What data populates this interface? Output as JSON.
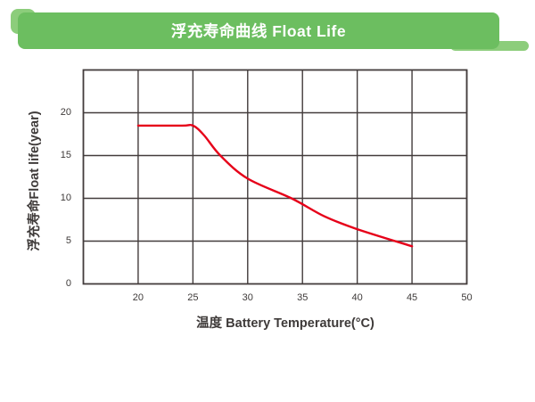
{
  "banner": {
    "title": "浮充寿命曲线 Float Life"
  },
  "colors": {
    "banner_green": "#6cbe60",
    "accent_green": "#8ccd7b",
    "grid": "#433c3c",
    "curve_red": "#e60019",
    "text": "#3e3a39",
    "background": "#ffffff"
  },
  "chart_data": {
    "type": "line",
    "title": "浮充寿命曲线 Float Life",
    "xlabel": "温度 Battery Temperature(°C)",
    "ylabel": "浮充寿命Float life(year)",
    "xlim": [
      15,
      50
    ],
    "ylim": [
      0,
      25
    ],
    "x_ticks": [
      20,
      25,
      30,
      35,
      40,
      45,
      50
    ],
    "y_ticks": [
      0,
      5,
      10,
      15,
      20
    ],
    "grid": true,
    "legend": "none",
    "series": [
      {
        "name": "Float life",
        "color": "#e60019",
        "points": [
          [
            20,
            18.5
          ],
          [
            24,
            18.5
          ],
          [
            25,
            18.5
          ],
          [
            26,
            17.4
          ],
          [
            27.5,
            15
          ],
          [
            30,
            12.3
          ],
          [
            34,
            10
          ],
          [
            37,
            7.9
          ],
          [
            40,
            6.4
          ],
          [
            45,
            4.4
          ]
        ]
      }
    ]
  }
}
